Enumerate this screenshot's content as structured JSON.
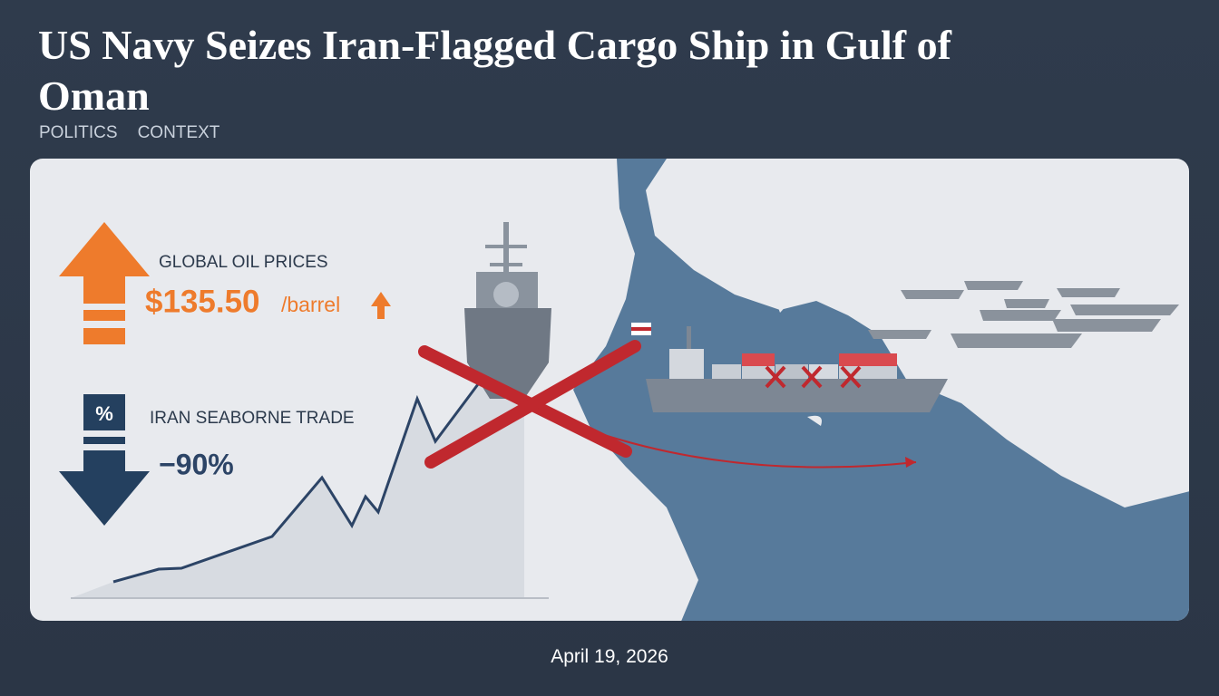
{
  "header": {
    "title": "US Navy Seizes Iran-Flagged Cargo Ship in Gulf of Oman",
    "tags": [
      "POLITICS",
      "CONTEXT"
    ]
  },
  "infographic": {
    "oil": {
      "label": "GLOBAL OIL PRICES",
      "price": "$135.50",
      "unit": "/barrel"
    },
    "trade": {
      "icon": "%",
      "label": "IRAN SEABORNE TRADE",
      "change": "−90%"
    }
  },
  "footer": {
    "date": "April 19, 2026"
  }
}
